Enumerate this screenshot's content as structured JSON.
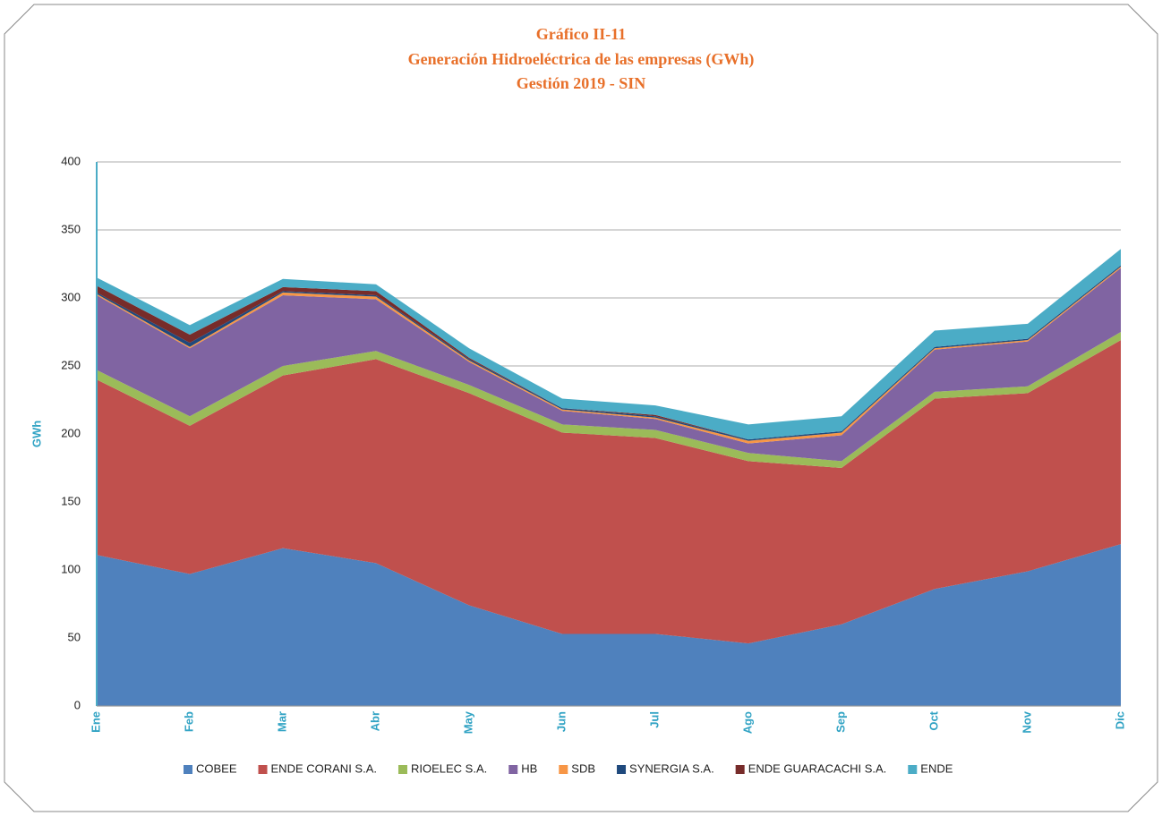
{
  "chart_data": {
    "type": "stacked_area",
    "title": [
      "Gráfico II-11",
      "Generación Hidroeléctrica de las empresas (GWh)",
      "Gestión 2019 - SIN"
    ],
    "y_label": "GWh",
    "categories": [
      "Ene",
      "Feb",
      "Mar",
      "Abr",
      "May",
      "Jun",
      "Jul",
      "Ago",
      "Sep",
      "Oct",
      "Nov",
      "Dic"
    ],
    "ylim": [
      0,
      400
    ],
    "yticks": [
      0,
      50,
      100,
      150,
      200,
      250,
      300,
      350,
      400
    ],
    "grid": true,
    "legend": "bottom",
    "series": [
      {
        "name": "COBEE",
        "color": "#4f81bd",
        "values": [
          111,
          97,
          116,
          105,
          74,
          53,
          53,
          46,
          60,
          86,
          99,
          119
        ]
      },
      {
        "name": "ENDE CORANI S.A.",
        "color": "#c0504d",
        "values": [
          129,
          109,
          127,
          150,
          156,
          148,
          144,
          134,
          115,
          140,
          131,
          150
        ]
      },
      {
        "name": "RIOELEC S.A.",
        "color": "#9bbb59",
        "values": [
          7,
          7,
          7,
          6,
          6,
          6,
          6,
          6,
          5,
          5,
          5,
          6
        ]
      },
      {
        "name": "HB",
        "color": "#8064a2",
        "values": [
          55,
          50,
          52,
          38,
          17,
          10,
          8,
          7,
          19,
          31,
          33,
          47
        ]
      },
      {
        "name": "SDB",
        "color": "#f79646",
        "values": [
          1,
          1,
          2,
          2,
          1,
          1,
          1,
          2,
          2,
          1,
          1,
          1
        ]
      },
      {
        "name": "SYNERGIA S.A.",
        "color": "#1f497d",
        "values": [
          1,
          3,
          1,
          1,
          1,
          1,
          1,
          1,
          1,
          1,
          1,
          1
        ]
      },
      {
        "name": "ENDE GUARACACHI S.A.",
        "color": "#772c2a",
        "values": [
          5,
          6,
          3,
          3,
          1,
          0,
          1,
          0,
          0,
          0,
          0,
          0
        ]
      },
      {
        "name": "ENDE",
        "color": "#4bacc6",
        "values": [
          6,
          7,
          6,
          5,
          7,
          7,
          7,
          11,
          11,
          12,
          11,
          12
        ]
      }
    ]
  }
}
